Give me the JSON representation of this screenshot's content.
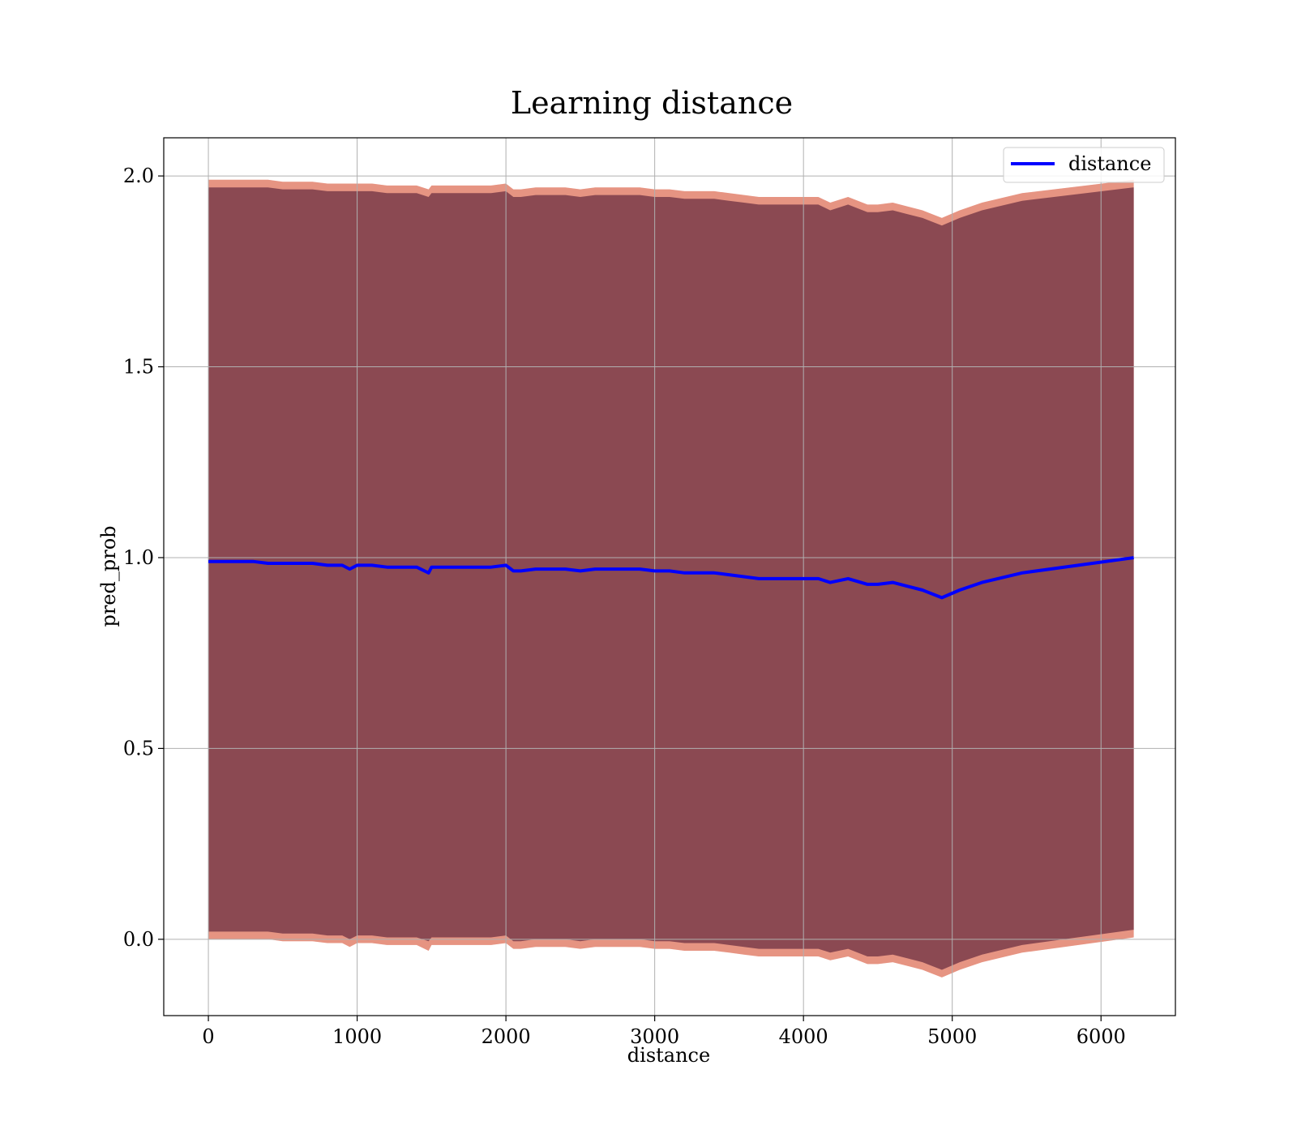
{
  "chart_data": {
    "type": "line",
    "title": "Learning distance",
    "xlabel": "distance",
    "ylabel": "pred_prob",
    "xlim": [
      -300,
      6500
    ],
    "ylim": [
      -0.2,
      2.1
    ],
    "xticks": [
      0,
      1000,
      2000,
      3000,
      4000,
      5000,
      6000
    ],
    "yticks": [
      0.0,
      0.5,
      1.0,
      1.5,
      2.0
    ],
    "xtick_labels": [
      "0",
      "1000",
      "2000",
      "3000",
      "4000",
      "5000",
      "6000"
    ],
    "ytick_labels": [
      "0.0",
      "0.5",
      "1.0",
      "1.5",
      "2.0"
    ],
    "grid": true,
    "legend": {
      "position": "top-right",
      "entries": [
        "distance"
      ]
    },
    "colors": {
      "line": "#0000ff",
      "band_inner": "#7a3c4a",
      "band_outer": "#ff6666",
      "band_mid": "#c87850",
      "grid": "#b0b0b0"
    },
    "series": [
      {
        "name": "distance",
        "x": [
          0,
          100,
          200,
          300,
          400,
          500,
          600,
          700,
          800,
          900,
          950,
          1000,
          1100,
          1200,
          1300,
          1400,
          1480,
          1500,
          1600,
          1700,
          1800,
          1900,
          2000,
          2050,
          2100,
          2200,
          2300,
          2400,
          2500,
          2600,
          2700,
          2800,
          2900,
          3000,
          3100,
          3200,
          3300,
          3400,
          3500,
          3600,
          3700,
          3800,
          3900,
          4000,
          4100,
          4180,
          4300,
          4430,
          4500,
          4600,
          4700,
          4800,
          4930,
          5050,
          5200,
          5470,
          6220
        ],
        "y": [
          0.99,
          0.99,
          0.99,
          0.99,
          0.985,
          0.985,
          0.985,
          0.985,
          0.98,
          0.98,
          0.97,
          0.98,
          0.98,
          0.975,
          0.975,
          0.975,
          0.96,
          0.975,
          0.975,
          0.975,
          0.975,
          0.975,
          0.98,
          0.965,
          0.965,
          0.97,
          0.97,
          0.97,
          0.965,
          0.97,
          0.97,
          0.97,
          0.97,
          0.965,
          0.965,
          0.96,
          0.96,
          0.96,
          0.955,
          0.95,
          0.945,
          0.945,
          0.945,
          0.945,
          0.945,
          0.935,
          0.945,
          0.93,
          0.93,
          0.935,
          0.925,
          0.915,
          0.895,
          0.915,
          0.935,
          0.96,
          1.0
        ],
        "upper_inner": [
          1.97,
          1.97,
          1.97,
          1.97,
          1.97,
          1.965,
          1.965,
          1.965,
          1.96,
          1.96,
          1.96,
          1.96,
          1.96,
          1.955,
          1.955,
          1.955,
          1.945,
          1.955,
          1.955,
          1.955,
          1.955,
          1.955,
          1.96,
          1.945,
          1.945,
          1.95,
          1.95,
          1.95,
          1.945,
          1.95,
          1.95,
          1.95,
          1.95,
          1.945,
          1.945,
          1.94,
          1.94,
          1.94,
          1.935,
          1.93,
          1.925,
          1.925,
          1.925,
          1.925,
          1.925,
          1.91,
          1.925,
          1.905,
          1.905,
          1.91,
          1.9,
          1.89,
          1.87,
          1.89,
          1.91,
          1.935,
          1.97
        ],
        "lower_inner": [
          0.02,
          0.02,
          0.02,
          0.02,
          0.02,
          0.015,
          0.015,
          0.015,
          0.01,
          0.01,
          0.0,
          0.01,
          0.01,
          0.005,
          0.005,
          0.005,
          -0.005,
          0.005,
          0.005,
          0.005,
          0.005,
          0.005,
          0.01,
          -0.005,
          -0.005,
          0.0,
          0.0,
          0.0,
          -0.005,
          0.0,
          0.0,
          0.0,
          0.0,
          -0.005,
          -0.005,
          -0.01,
          -0.01,
          -0.01,
          -0.015,
          -0.02,
          -0.025,
          -0.025,
          -0.025,
          -0.025,
          -0.025,
          -0.035,
          -0.025,
          -0.045,
          -0.045,
          -0.04,
          -0.05,
          -0.06,
          -0.08,
          -0.06,
          -0.04,
          -0.015,
          0.025
        ],
        "upper_outer": [
          1.99,
          1.99,
          1.99,
          1.99,
          1.99,
          1.985,
          1.985,
          1.985,
          1.98,
          1.98,
          1.98,
          1.98,
          1.98,
          1.975,
          1.975,
          1.975,
          1.965,
          1.975,
          1.975,
          1.975,
          1.975,
          1.975,
          1.98,
          1.965,
          1.965,
          1.97,
          1.97,
          1.97,
          1.965,
          1.97,
          1.97,
          1.97,
          1.97,
          1.965,
          1.965,
          1.96,
          1.96,
          1.96,
          1.955,
          1.95,
          1.945,
          1.945,
          1.945,
          1.945,
          1.945,
          1.93,
          1.945,
          1.925,
          1.925,
          1.93,
          1.92,
          1.91,
          1.89,
          1.91,
          1.93,
          1.955,
          1.99
        ],
        "lower_outer": [
          0.0,
          0.0,
          0.0,
          0.0,
          0.0,
          -0.005,
          -0.005,
          -0.005,
          -0.01,
          -0.01,
          -0.02,
          -0.01,
          -0.01,
          -0.015,
          -0.015,
          -0.015,
          -0.03,
          -0.015,
          -0.015,
          -0.015,
          -0.015,
          -0.015,
          -0.01,
          -0.025,
          -0.025,
          -0.02,
          -0.02,
          -0.02,
          -0.025,
          -0.02,
          -0.02,
          -0.02,
          -0.02,
          -0.025,
          -0.025,
          -0.03,
          -0.03,
          -0.03,
          -0.035,
          -0.04,
          -0.045,
          -0.045,
          -0.045,
          -0.045,
          -0.045,
          -0.055,
          -0.045,
          -0.065,
          -0.065,
          -0.06,
          -0.07,
          -0.08,
          -0.1,
          -0.08,
          -0.06,
          -0.035,
          0.005
        ]
      }
    ]
  }
}
